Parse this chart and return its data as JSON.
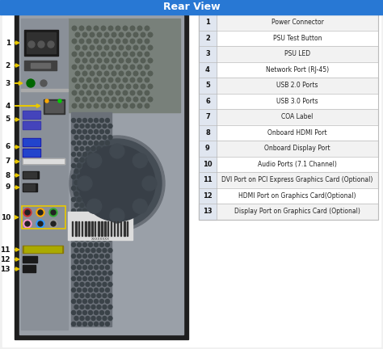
{
  "title": "Rear View",
  "title_bg": "#2878d4",
  "title_color": "#ffffff",
  "title_fontsize": 9,
  "bg_color": "#f0f0f0",
  "content_bg": "#ffffff",
  "table_entries": [
    {
      "num": "1",
      "label": "Power Connector"
    },
    {
      "num": "2",
      "label": "PSU Test Button"
    },
    {
      "num": "3",
      "label": "PSU LED"
    },
    {
      "num": "4",
      "label": "Network Port (RJ-45)"
    },
    {
      "num": "5",
      "label": "USB 2.0 Ports"
    },
    {
      "num": "6",
      "label": "USB 3.0 Ports"
    },
    {
      "num": "7",
      "label": "COA Label"
    },
    {
      "num": "8",
      "label": "Onboard HDMI Port"
    },
    {
      "num": "9",
      "label": "Onboard Display Port"
    },
    {
      "num": "10",
      "label": "Audio Ports (7.1 Channel)"
    },
    {
      "num": "11",
      "label": "DVI Port on PCI Express Graphics Card (Optional)"
    },
    {
      "num": "12",
      "label": "HDMI Port on Graphics Card(Optional)"
    },
    {
      "num": "13",
      "label": "Display Port on Graphics Card (Optional)"
    }
  ],
  "table_row_bg1": "#f2f2f2",
  "table_row_bg2": "#ffffff",
  "table_border": "#bbbbbb",
  "num_col_bg": "#e0e6f0",
  "label_fontsize": 5.5,
  "num_fontsize": 6,
  "arrow_color": "#e8c800",
  "arrow_lw": 1.5,
  "num_label_fontsize": 6.5
}
